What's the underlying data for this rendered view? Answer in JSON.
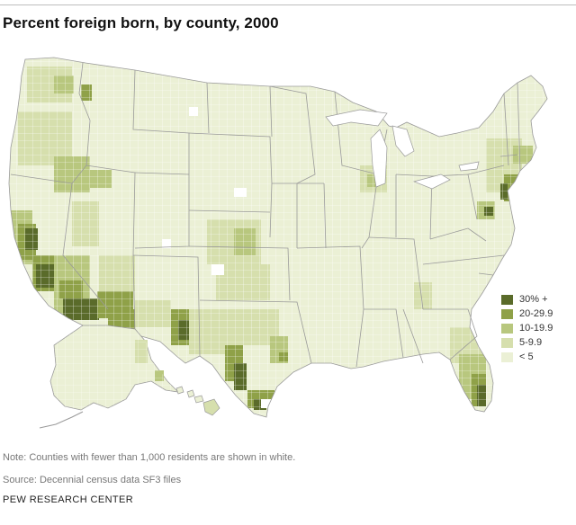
{
  "title": "Percent foreign born, by county, 2000",
  "legend": {
    "items": [
      {
        "label": "30% +",
        "color": "#5a6b2a"
      },
      {
        "label": "20-29.9",
        "color": "#8fa148"
      },
      {
        "label": "10-19.9",
        "color": "#b8c77e"
      },
      {
        "label": "5-9.9",
        "color": "#d6dfad"
      },
      {
        "label": "< 5",
        "color": "#ebf0d5"
      }
    ]
  },
  "colors": {
    "base": "#ebf0d5",
    "county_border": "#ffffff",
    "state_border": "#9a9a9a",
    "low_population": "#ffffff"
  },
  "note": "Note: Counties with fewer than 1,000 residents are shown in white.",
  "source": "Source: Decennial census data SF3 files",
  "organization": "PEW RESEARCH CENTER"
}
